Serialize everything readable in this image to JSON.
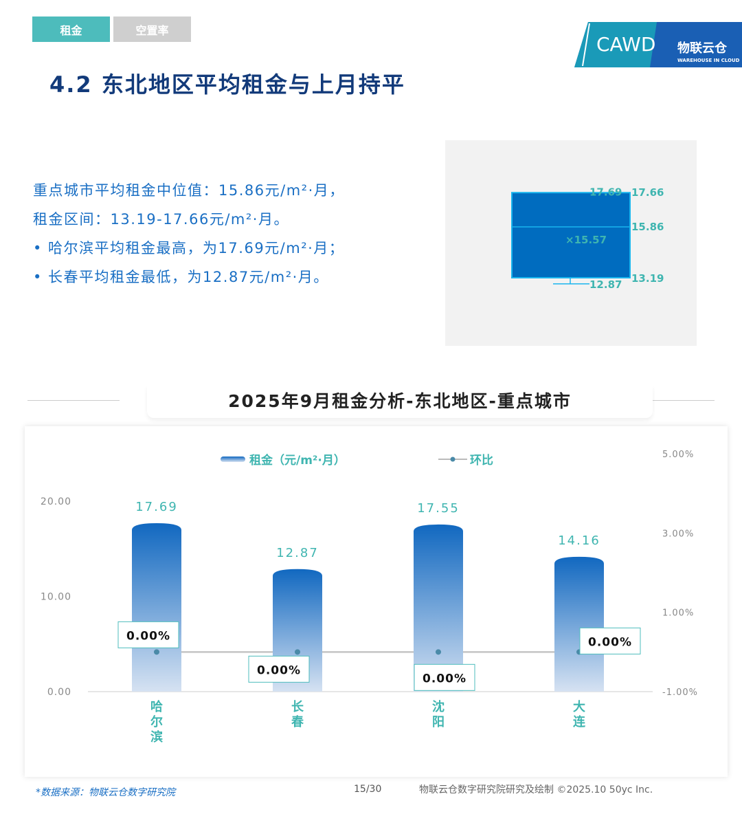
{
  "tabs": [
    {
      "label": "租金"
    },
    {
      "label": "空置率"
    }
  ],
  "logo": {
    "left": "CAWD",
    "right": "物联云仓",
    "right_sub": "WAREHOUSE IN CLOUD"
  },
  "title": "4.2 东北地区平均租金与上月持平",
  "summary": {
    "line1": "重点城市平均租金中位值：15.86元/m²·月，",
    "line2": "租金区间：13.19-17.66元/m²·月。",
    "bullet1": "• 哈尔滨平均租金最高，为17.69元/m²·月；",
    "bullet2": "• 长春平均租金最低，为12.87元/m²·月。"
  },
  "colors": {
    "accent": "#4dbcbc",
    "bar": "#1168c0",
    "title": "#123a7a",
    "text_blue": "#1a6fc4"
  },
  "chart_data": [
    {
      "type": "box",
      "max": 17.69,
      "q3": 17.66,
      "median": 15.86,
      "mean": 15.57,
      "q1": 13.19,
      "min": 12.87,
      "labels": {
        "max": "17.69",
        "q3": "17.66",
        "median": "15.86",
        "mean": "×15.57",
        "q1": "13.19",
        "min": "12.87"
      }
    },
    {
      "type": "bar",
      "title": "2025年9月租金分析-东北地区-重点城市",
      "categories": [
        "哈尔滨",
        "长春",
        "沈阳",
        "大连"
      ],
      "series": [
        {
          "name": "租金（元/m²·月）",
          "type": "bar",
          "axis": "left",
          "values": [
            17.69,
            12.87,
            17.55,
            14.16
          ],
          "labels": [
            "17.69",
            "12.87",
            "17.55",
            "14.16"
          ]
        },
        {
          "name": "环比",
          "type": "line",
          "axis": "right",
          "values": [
            0,
            0,
            0,
            0
          ],
          "labels": [
            "0.00%",
            "0.00%",
            "0.00%",
            "0.00%"
          ]
        }
      ],
      "left_axis": {
        "range": [
          0,
          20
        ],
        "ticks": [
          "0.00",
          "10.00",
          "20.00"
        ]
      },
      "right_axis": {
        "range": [
          -1,
          5
        ],
        "ticks": [
          "-1.00%",
          "1.00%",
          "3.00%",
          "5.00%"
        ]
      },
      "legend": "top"
    }
  ],
  "footer": {
    "source": "*数据来源：物联云仓数字研究院",
    "page": "15/30",
    "credit": "物联云仓数字研究院研究及绘制    ©2025.10 50yc Inc."
  }
}
